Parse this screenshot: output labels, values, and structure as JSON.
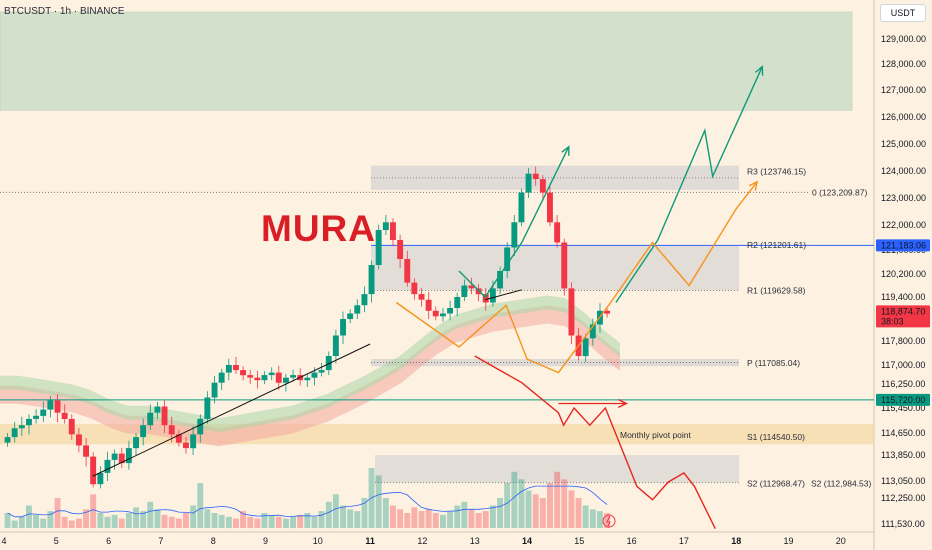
{
  "header": {
    "symbol": "BTCUSDT · 1h · BINANCE",
    "currency": "USDT"
  },
  "brand": "MURA",
  "colors": {
    "background": "#fdf1e1",
    "up": "#089981",
    "down": "#f23645",
    "target_zone": "#d3e0cc",
    "arrow_green": "#0e9b76",
    "arrow_orange": "#f7931a",
    "arrow_red": "#e8261e",
    "blue_line": "#2962ff",
    "green_line": "#089981"
  },
  "chart_data": {
    "type": "candlestick",
    "ylim": [
      111250,
      129700
    ],
    "x_ticks": [
      "4",
      "5",
      "6",
      "7",
      "8",
      "9",
      "10",
      "11",
      "12",
      "13",
      "14",
      "15",
      "16",
      "17",
      "18",
      "19",
      "20"
    ],
    "y_ticks": [
      "129,000.00",
      "128,000.00",
      "127,000.00",
      "126,000.00",
      "125,000.00",
      "124,000.00",
      "123,000.00",
      "122,000.00",
      "121,000.00",
      "120,200.00",
      "119,400.00",
      "117,800.00",
      "117,000.00",
      "116,250.00",
      "115,450.00",
      "114,650.00",
      "113,850.00",
      "113,050.00",
      "112,250.00",
      "111,530.00"
    ],
    "price_badges": [
      {
        "label": "121,183.06",
        "value": 121183.06,
        "color": "#2962ff"
      },
      {
        "label": "118,874.70",
        "sub": "38:03",
        "value": 118874.7,
        "color": "#f23645"
      },
      {
        "label": "115,720.00",
        "value": 115720,
        "color": "#089981"
      }
    ],
    "pivot_levels": [
      {
        "name": "R3",
        "label": "R3 (123746.15)",
        "value": 123746.15
      },
      {
        "name": "R2",
        "label": "R2 (121201.61)",
        "value": 121201.61
      },
      {
        "name": "R1",
        "label": "R1 (119629.58)",
        "value": 119629.58
      },
      {
        "name": "P",
        "label": "P (117085.04)",
        "value": 117085.04
      },
      {
        "name": "S1",
        "label": "S1 (114540.50)",
        "value": 114540.5
      },
      {
        "name": "S2",
        "label": "S2 (112968.47)",
        "value": 112968.47
      }
    ],
    "s2_secondary_label": "S2 (112,984.53)",
    "fib_label": "0 (123,209.87)",
    "fib_value": 123209.87,
    "annotation": "Monthly pivot point",
    "target_zone": [
      126250,
      130000
    ],
    "candles": {
      "start_day": 4,
      "step_hours": 3,
      "close": [
        114500,
        114800,
        114900,
        115100,
        115200,
        115400,
        115700,
        115300,
        115100,
        114600,
        114200,
        113800,
        112900,
        113300,
        113700,
        113900,
        113600,
        114100,
        114500,
        114900,
        115300,
        115500,
        114900,
        114600,
        114300,
        114100,
        114600,
        115100,
        115800,
        116300,
        116700,
        117000,
        116800,
        116600,
        116500,
        116400,
        116600,
        116700,
        116300,
        116500,
        116600,
        116400,
        116500,
        116700,
        116800,
        117300,
        118000,
        118600,
        118800,
        119100,
        119500,
        120500,
        121800,
        122100,
        121400,
        120700,
        119900,
        119500,
        119300,
        118900,
        118700,
        118800,
        119000,
        119400,
        119800,
        119700,
        119500,
        119200,
        119700,
        120300,
        121100,
        122100,
        123200,
        123900,
        123700,
        123200,
        122100,
        121300,
        119700,
        118000,
        117300,
        117900,
        118400,
        118900,
        118800
      ]
    },
    "ma_band": [
      116300,
      116300,
      116200,
      116100,
      116000,
      115800,
      115500,
      115300,
      115300,
      115200,
      115100,
      115000,
      114900,
      115000,
      115100,
      115200,
      115300,
      115500,
      115700,
      116000,
      116300,
      116700,
      117100,
      117600,
      118100,
      118500,
      118700,
      118900,
      119000,
      119100,
      119200,
      119100,
      118600,
      118000,
      117500
    ],
    "volume": [
      40,
      20,
      30,
      60,
      35,
      25,
      45,
      80,
      30,
      20,
      25,
      50,
      90,
      40,
      30,
      35,
      25,
      40,
      55,
      45,
      70,
      50,
      35,
      30,
      25,
      40,
      60,
      120,
      50,
      40,
      35,
      30,
      25,
      45,
      30,
      25,
      40,
      35,
      30,
      25,
      30,
      35,
      40,
      30,
      45,
      70,
      90,
      60,
      50,
      45,
      80,
      160,
      140,
      80,
      60,
      50,
      40,
      55,
      45,
      50,
      40,
      35,
      45,
      60,
      70,
      50,
      40,
      45,
      60,
      80,
      120,
      150,
      130,
      100,
      90,
      80,
      120,
      150,
      130,
      100,
      80,
      60,
      50,
      45,
      40
    ]
  }
}
